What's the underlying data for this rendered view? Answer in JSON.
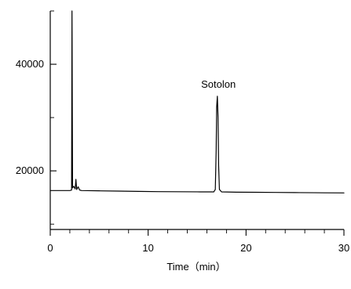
{
  "chart_data": {
    "type": "line",
    "title": "",
    "xlabel": "Time（min）",
    "ylabel": "",
    "xlim": [
      0,
      30
    ],
    "ylim": [
      9000,
      50000
    ],
    "x_ticks": [
      0,
      10,
      20,
      30
    ],
    "y_ticks": [
      20000,
      40000
    ],
    "x_tick_labels": [
      "0",
      "10",
      "20",
      "30"
    ],
    "y_tick_labels": [
      "20000",
      "40000"
    ],
    "annotation": {
      "text": "Sotolon",
      "x": 17.1,
      "y": 34000
    },
    "series": [
      {
        "color": "#000000",
        "points": [
          [
            0.0,
            16300
          ],
          [
            1.0,
            16300
          ],
          [
            2.0,
            16300
          ],
          [
            2.18,
            16400
          ],
          [
            2.22,
            50000
          ],
          [
            2.28,
            16800
          ],
          [
            2.4,
            17100
          ],
          [
            2.55,
            16600
          ],
          [
            2.62,
            18400
          ],
          [
            2.7,
            16500
          ],
          [
            2.85,
            17000
          ],
          [
            3.0,
            16400
          ],
          [
            3.2,
            16300
          ],
          [
            5.0,
            16250
          ],
          [
            7.0,
            16200
          ],
          [
            9.0,
            16150
          ],
          [
            11.0,
            16100
          ],
          [
            13.0,
            16080
          ],
          [
            15.0,
            16060
          ],
          [
            16.7,
            16050
          ],
          [
            16.86,
            16500
          ],
          [
            16.95,
            24000
          ],
          [
            17.0,
            32000
          ],
          [
            17.07,
            34000
          ],
          [
            17.14,
            30000
          ],
          [
            17.2,
            21000
          ],
          [
            17.28,
            16500
          ],
          [
            17.5,
            16050
          ],
          [
            19.0,
            16000
          ],
          [
            21.0,
            15980
          ],
          [
            23.0,
            15950
          ],
          [
            25.0,
            15920
          ],
          [
            27.0,
            15900
          ],
          [
            28.0,
            15880
          ],
          [
            30.0,
            15860
          ]
        ]
      }
    ]
  }
}
